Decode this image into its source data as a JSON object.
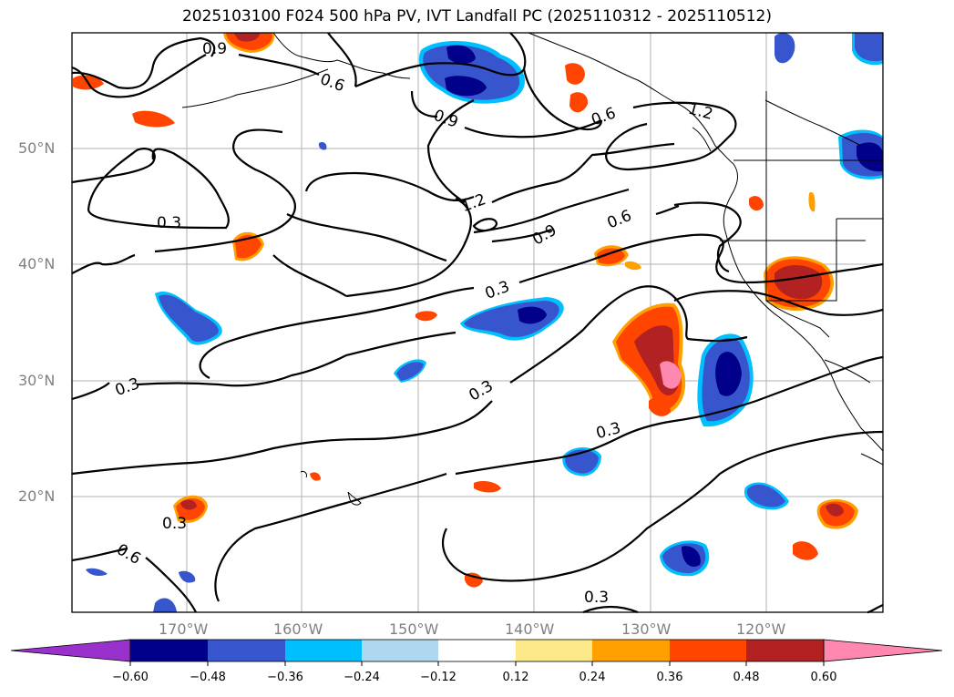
{
  "title": "2025103100 F024 500 hPa PV, IVT Landfall PC (2025110312 - 2025110512)",
  "map": {
    "lat_labels": [
      "50°N",
      "40°N",
      "30°N",
      "20°N"
    ],
    "lon_labels": [
      "170°W",
      "160°W",
      "150°W",
      "140°W",
      "130°W",
      "120°W"
    ],
    "contour_labels": [
      "0.9",
      "0.6",
      "0.9",
      "0.6",
      "1.2",
      "0.3",
      "1.2",
      "0.6",
      "0.9",
      "0.3",
      "0.3",
      "0.3",
      "0.3",
      "0.3",
      "0.6",
      "0.3"
    ]
  },
  "colorbar": {
    "ticks": [
      "−0.60",
      "−0.48",
      "−0.36",
      "−0.24",
      "−0.12",
      "0.12",
      "0.24",
      "0.36",
      "0.48",
      "0.60"
    ],
    "colors": [
      "#9932cc",
      "#00008b",
      "#3755cc",
      "#00bfff",
      "#add8f0",
      "#ffffff",
      "#fde98a",
      "#ffa000",
      "#ff4500",
      "#b22222",
      "#ff88b0"
    ]
  }
}
